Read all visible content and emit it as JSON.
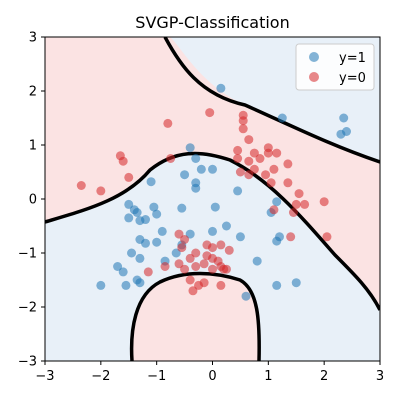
{
  "chart_data": {
    "type": "scatter",
    "title": "SVGP-Classification",
    "xlim": [
      -3,
      3
    ],
    "ylim": [
      -3,
      3
    ],
    "xticks": [
      "−3",
      "−2",
      "−1",
      "0",
      "1",
      "2",
      "3"
    ],
    "yticks": [
      "−3",
      "−2",
      "−1",
      "0",
      "1",
      "2",
      "3"
    ],
    "legend_position": "top-right",
    "region_colors": {
      "class1": "#e8f0f8",
      "class0": "#fbe3e3"
    },
    "boundary_color": "#000000",
    "series": [
      {
        "name": "y=1",
        "color": "#1f77b4",
        "points": [
          [
            0.15,
            2.05
          ],
          [
            1.25,
            1.5
          ],
          [
            2.35,
            1.5
          ],
          [
            2.3,
            1.2
          ],
          [
            2.4,
            1.25
          ],
          [
            -0.4,
            0.95
          ],
          [
            -0.3,
            0.75
          ],
          [
            -0.5,
            0.45
          ],
          [
            -0.2,
            0.55
          ],
          [
            0.0,
            0.55
          ],
          [
            -0.3,
            0.3
          ],
          [
            -0.3,
            0.2
          ],
          [
            -1.1,
            0.32
          ],
          [
            0.45,
            0.15
          ],
          [
            1.05,
            -0.25
          ],
          [
            1.15,
            -0.05
          ],
          [
            -1.5,
            -0.1
          ],
          [
            -1.4,
            -0.2
          ],
          [
            -1.35,
            -0.25
          ],
          [
            -1.05,
            -0.15
          ],
          [
            -1.0,
            -0.28
          ],
          [
            -1.5,
            -0.35
          ],
          [
            -1.3,
            -0.4
          ],
          [
            -1.2,
            -0.38
          ],
          [
            -0.55,
            -0.17
          ],
          [
            0.05,
            -0.15
          ],
          [
            -0.9,
            -0.6
          ],
          [
            -1.3,
            -0.75
          ],
          [
            -1.2,
            -0.82
          ],
          [
            -0.55,
            -0.85
          ],
          [
            -1.0,
            -0.8
          ],
          [
            -0.4,
            -0.65
          ],
          [
            0.25,
            -0.5
          ],
          [
            0.5,
            -0.7
          ],
          [
            0.0,
            -0.6
          ],
          [
            1.2,
            -0.7
          ],
          [
            1.15,
            -0.78
          ],
          [
            -1.45,
            -1.0
          ],
          [
            -1.3,
            -1.1
          ],
          [
            -0.85,
            -1.15
          ],
          [
            -0.65,
            -1.0
          ],
          [
            -1.7,
            -1.25
          ],
          [
            -1.6,
            -1.35
          ],
          [
            -1.3,
            -1.55
          ],
          [
            -1.55,
            -1.6
          ],
          [
            -1.35,
            -1.5
          ],
          [
            -2.0,
            -1.6
          ],
          [
            0.8,
            -1.15
          ],
          [
            1.15,
            -1.6
          ],
          [
            1.5,
            -1.55
          ],
          [
            0.6,
            -1.8
          ]
        ]
      },
      {
        "name": "y=0",
        "color": "#d62728",
        "points": [
          [
            -0.05,
            1.6
          ],
          [
            0.55,
            1.55
          ],
          [
            0.55,
            1.45
          ],
          [
            -0.8,
            1.4
          ],
          [
            0.55,
            1.3
          ],
          [
            0.65,
            1.1
          ],
          [
            1.0,
            0.95
          ],
          [
            0.75,
            0.85
          ],
          [
            0.45,
            0.9
          ],
          [
            0.45,
            0.75
          ],
          [
            0.65,
            0.7
          ],
          [
            0.85,
            0.75
          ],
          [
            1.0,
            0.85
          ],
          [
            1.15,
            0.85
          ],
          [
            1.35,
            0.65
          ],
          [
            1.1,
            0.55
          ],
          [
            0.75,
            0.55
          ],
          [
            0.5,
            0.5
          ],
          [
            0.95,
            0.45
          ],
          [
            1.05,
            0.3
          ],
          [
            1.35,
            0.3
          ],
          [
            1.55,
            0.1
          ],
          [
            1.5,
            -0.1
          ],
          [
            1.65,
            -0.1
          ],
          [
            2.0,
            -0.05
          ],
          [
            1.45,
            -0.25
          ],
          [
            -1.65,
            0.8
          ],
          [
            -1.6,
            0.7
          ],
          [
            -1.5,
            0.4
          ],
          [
            -2.35,
            0.25
          ],
          [
            -2.0,
            0.15
          ],
          [
            -0.75,
            0.75
          ],
          [
            0.65,
            0.45
          ],
          [
            1.1,
            -0.2
          ],
          [
            1.4,
            -0.7
          ],
          [
            2.05,
            -0.7
          ],
          [
            -0.6,
            -0.65
          ],
          [
            -0.5,
            -0.75
          ],
          [
            -0.55,
            -0.9
          ],
          [
            -0.1,
            -0.85
          ],
          [
            0.0,
            -0.9
          ],
          [
            0.15,
            -0.85
          ],
          [
            0.3,
            -0.95
          ],
          [
            -0.3,
            -1.0
          ],
          [
            -0.4,
            -1.1
          ],
          [
            -0.1,
            -1.05
          ],
          [
            0.0,
            -1.1
          ],
          [
            0.1,
            -1.15
          ],
          [
            0.15,
            -1.25
          ],
          [
            0.2,
            -1.3
          ],
          [
            0.25,
            -1.3
          ],
          [
            -0.15,
            -1.2
          ],
          [
            -0.5,
            -1.3
          ],
          [
            -0.3,
            -1.25
          ],
          [
            0.0,
            -1.3
          ],
          [
            -0.85,
            -1.25
          ],
          [
            -1.15,
            -1.35
          ],
          [
            -0.4,
            -1.5
          ],
          [
            -0.25,
            -1.6
          ],
          [
            0.15,
            -1.6
          ],
          [
            -0.35,
            -1.7
          ],
          [
            -0.15,
            -1.55
          ],
          [
            -0.6,
            -1.2
          ]
        ]
      }
    ]
  }
}
